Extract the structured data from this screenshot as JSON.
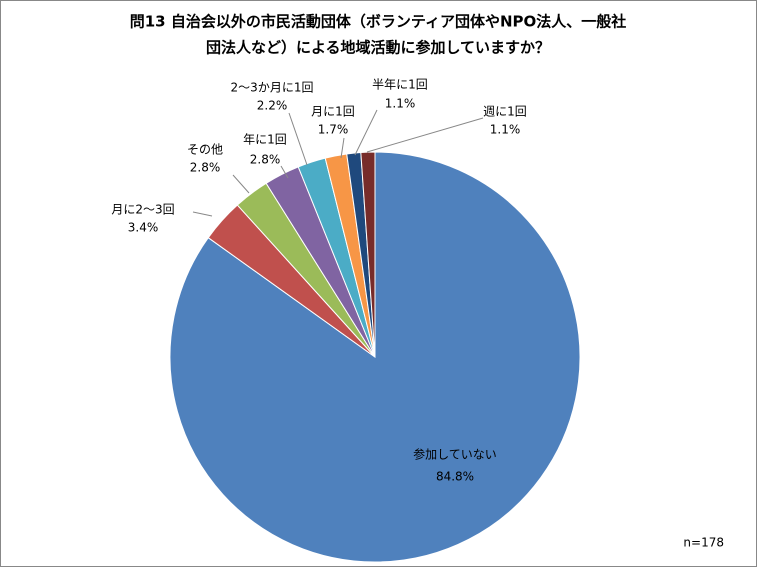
{
  "chart_data": {
    "type": "pie",
    "title": [
      "問13 自治会以外の市民活動団体（ボランティア団体やNPO法人、一般社",
      "団法人など）による地域活動に参加していますか？"
    ],
    "categories": [
      "参加していない",
      "月に2～3回",
      "その他",
      "年に1回",
      "2～3か月に1回",
      "月に1回",
      "半年に1回",
      "週に1回"
    ],
    "values": [
      84.8,
      3.4,
      2.8,
      2.8,
      2.2,
      1.7,
      1.1,
      1.1
    ],
    "value_labels": [
      "84.8%",
      "3.4%",
      "2.8%",
      "2.8%",
      "2.2%",
      "1.7%",
      "1.1%",
      "1.1%"
    ],
    "colors": [
      "#4f81bd",
      "#c0504d",
      "#9bbb59",
      "#8064a2",
      "#4bacc6",
      "#f79646",
      "#1f497d",
      "#772c2a"
    ],
    "annotation": "n=178"
  }
}
